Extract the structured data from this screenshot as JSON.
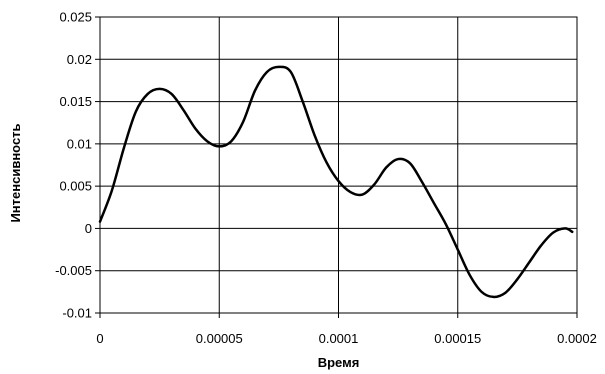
{
  "chart_data": {
    "type": "line",
    "title": "",
    "xlabel": "Время",
    "ylabel": "Интенсивность",
    "xlim": [
      0,
      0.0002
    ],
    "ylim": [
      -0.01,
      0.025
    ],
    "x_ticks": [
      0,
      5e-05,
      0.0001,
      0.00015,
      0.0002
    ],
    "x_tick_labels": [
      "0",
      "0.00005",
      "0.0001",
      "0.00015",
      "0.0002"
    ],
    "y_ticks": [
      -0.01,
      -0.005,
      0,
      0.005,
      0.01,
      0.015,
      0.02,
      0.025
    ],
    "y_tick_labels": [
      "-0.01",
      "-0.005",
      "0",
      "0.005",
      "0.01",
      "0.015",
      "0.02",
      "0.025"
    ],
    "grid": "vertical and horizontal major gridlines",
    "legend": "none",
    "line_color": "#000000",
    "series": [
      {
        "x": [
          0,
          5e-06,
          1e-05,
          1.5e-05,
          2e-05,
          2.5e-05,
          3e-05,
          3.5e-05,
          4e-05,
          4.5e-05,
          5e-05,
          5.5e-05,
          6e-05,
          6.5e-05,
          7e-05,
          7.5e-05,
          8e-05,
          8.5e-05,
          9e-05,
          9.5e-05,
          0.0001,
          0.000105,
          0.00011,
          0.000115,
          0.00012,
          0.000125,
          0.00013,
          0.000135,
          0.00014,
          0.000145,
          0.00015,
          0.000155,
          0.00016,
          0.000165,
          0.00017,
          0.000175,
          0.00018,
          0.000185,
          0.00019,
          0.000195,
          0.000198
        ],
        "y": [
          0.0008,
          0.0045,
          0.0095,
          0.0138,
          0.0159,
          0.0165,
          0.0159,
          0.014,
          0.0118,
          0.0103,
          0.0097,
          0.0103,
          0.0126,
          0.0163,
          0.0185,
          0.0191,
          0.0185,
          0.015,
          0.011,
          0.0078,
          0.0056,
          0.0043,
          0.004,
          0.0052,
          0.0072,
          0.0082,
          0.0077,
          0.0055,
          0.003,
          0.0005,
          -0.0025,
          -0.0055,
          -0.0075,
          -0.0081,
          -0.0076,
          -0.006,
          -0.004,
          -0.002,
          -0.0005,
          0.0,
          -0.0004
        ]
      }
    ]
  }
}
